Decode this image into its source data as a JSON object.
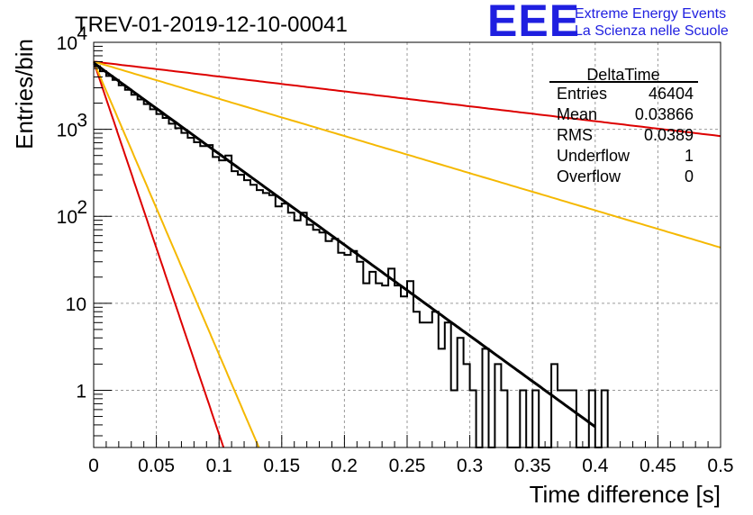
{
  "header": {
    "title": "TREV-01-2019-12-10-00041",
    "logo_text": "EEE",
    "logo_line1": "Extreme Energy Events",
    "logo_line2": "La Scienza nelle Scuole"
  },
  "stats_box": {
    "title": "DeltaTime",
    "rows": [
      {
        "label": "Entries",
        "value": "46404"
      },
      {
        "label": "Mean",
        "value": "0.03866"
      },
      {
        "label": "RMS",
        "value": "0.0389"
      },
      {
        "label": "Underflow",
        "value": "1"
      },
      {
        "label": "Overflow",
        "value": "0"
      }
    ]
  },
  "colors": {
    "histogram": "#000000",
    "fit_main": "#000000",
    "line_red": "#dd0000",
    "line_yellow": "#f5b800",
    "grid": "#9a9a9a",
    "logo": "#1f1fe0"
  },
  "chart_data": {
    "type": "line",
    "title": "TREV-01-2019-12-10-00041",
    "xlabel": "Time difference [s]",
    "ylabel": "Entries/bin",
    "xlim": [
      0,
      0.5
    ],
    "ylim": [
      0.22,
      10000
    ],
    "yscale": "log",
    "grid": true,
    "x_ticks": [
      "0",
      "0.05",
      "0.1",
      "0.15",
      "0.2",
      "0.25",
      "0.3",
      "0.35",
      "0.4",
      "0.45",
      "0.5"
    ],
    "y_ticks": [
      {
        "value": 1,
        "label": "1"
      },
      {
        "value": 10,
        "label": "10"
      },
      {
        "value": 100,
        "label": "10",
        "exp": "2"
      },
      {
        "value": 1000,
        "label": "10",
        "exp": "3"
      },
      {
        "value": 10000,
        "label": "10",
        "exp": "4"
      }
    ],
    "histogram": {
      "bin_width": 0.005,
      "counts": [
        5300,
        4650,
        4100,
        3700,
        3200,
        2850,
        2500,
        2200,
        1950,
        1700,
        1500,
        1350,
        1160,
        1030,
        910,
        800,
        710,
        640,
        660,
        480,
        440,
        500,
        330,
        300,
        260,
        230,
        200,
        185,
        175,
        130,
        140,
        110,
        90,
        110,
        80,
        70,
        65,
        52,
        55,
        38,
        36,
        40,
        30,
        17,
        23,
        17,
        16,
        25,
        16,
        12,
        18,
        8,
        6,
        6,
        8,
        3,
        6,
        1,
        4,
        2,
        1,
        0,
        3,
        0,
        2,
        1,
        0,
        0,
        1,
        0,
        1,
        0,
        0,
        2,
        1,
        1,
        1,
        0,
        0,
        1,
        0,
        1
      ]
    },
    "fit": {
      "type": "exponential",
      "amplitude": 5800,
      "tau": 0.04153,
      "x_range": [
        0,
        0.4
      ]
    },
    "reference_lines": [
      {
        "color": "red",
        "amplitude": 6000,
        "tau": 0.2536,
        "x_range": [
          0,
          0.5
        ]
      },
      {
        "color": "yellow",
        "amplitude": 6000,
        "tau": 0.1016,
        "x_range": [
          0,
          0.5
        ]
      },
      {
        "color": "red",
        "amplitude": 6000,
        "tau": 0.01014,
        "x_range": [
          0,
          0.2
        ]
      },
      {
        "color": "yellow",
        "amplitude": 6000,
        "tau": 0.0129,
        "x_range": [
          0,
          0.2
        ]
      }
    ]
  }
}
